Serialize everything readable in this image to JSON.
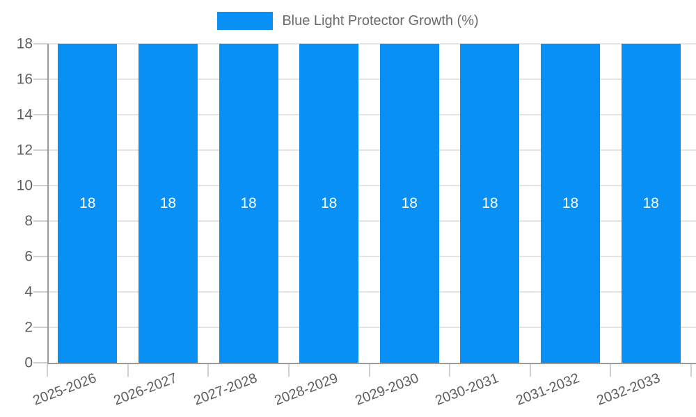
{
  "legend": {
    "label": "Blue Light Protector Growth (%)"
  },
  "chart_data": {
    "type": "bar",
    "title": "Blue Light Protector Growth (%)",
    "categories": [
      "2025-2026",
      "2026-2027",
      "2027-2028",
      "2028-2029",
      "2029-2030",
      "2030-2031",
      "2031-2032",
      "2032-2033"
    ],
    "values": [
      18,
      18,
      18,
      18,
      18,
      18,
      18,
      18
    ],
    "xlabel": "",
    "ylabel": "",
    "ylim": [
      0,
      18
    ],
    "yticks": [
      0,
      2,
      4,
      6,
      8,
      10,
      12,
      14,
      16,
      18
    ],
    "grid": true,
    "legend_position": "top",
    "bar_color": "#0890f5",
    "value_label_color": "#ffffff",
    "axis_label_color": "#5f5f5f"
  }
}
